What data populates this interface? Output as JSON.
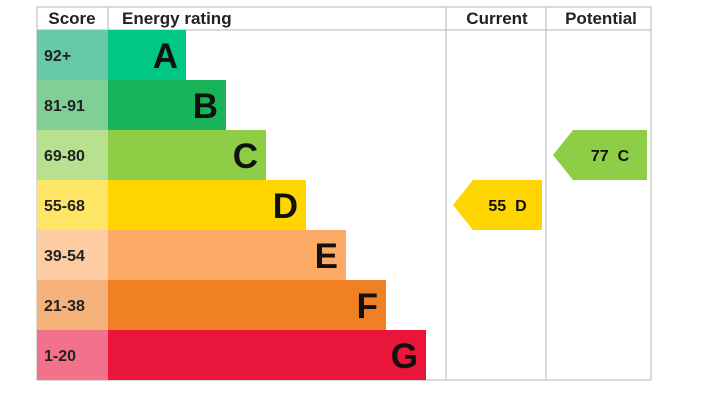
{
  "chart_data": {
    "type": "table",
    "headers": {
      "score": "Score",
      "rating": "Energy rating",
      "current": "Current",
      "potential": "Potential"
    },
    "bands": [
      {
        "score": "92+",
        "letter": "A",
        "color": "#00c781",
        "light": "#66c9a7"
      },
      {
        "score": "81-91",
        "letter": "B",
        "color": "#19b459",
        "light": "#7fcf97"
      },
      {
        "score": "69-80",
        "letter": "C",
        "color": "#8dce46",
        "light": "#b7e08f"
      },
      {
        "score": "55-68",
        "letter": "D",
        "color": "#ffd500",
        "light": "#ffe566"
      },
      {
        "score": "39-54",
        "letter": "E",
        "color": "#fcaa65",
        "light": "#fdcca3"
      },
      {
        "score": "21-38",
        "letter": "F",
        "color": "#ef8023",
        "light": "#f5b27b"
      },
      {
        "score": "1-20",
        "letter": "G",
        "color": "#e9153b",
        "light": "#f2728b"
      }
    ],
    "current": {
      "value": 55,
      "letter": "D",
      "label": "55  D"
    },
    "potential": {
      "value": 77,
      "letter": "C",
      "label": "77  C"
    }
  }
}
